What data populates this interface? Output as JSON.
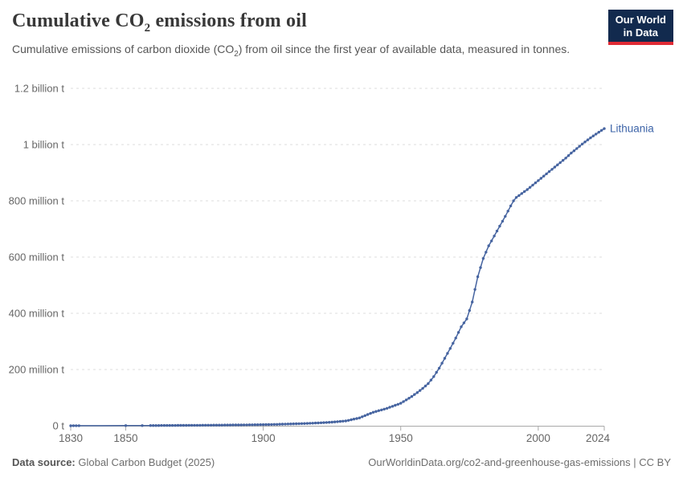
{
  "header": {
    "title_pre": "Cumulative CO",
    "title_sub": "2",
    "title_post": " emissions from oil",
    "subtitle_pre": "Cumulative emissions of carbon dioxide (CO",
    "subtitle_sub": "2",
    "subtitle_post": ") from oil since the first year of available data, measured in tonnes."
  },
  "logo": {
    "line1": "Our World",
    "line2": "in Data",
    "bg_color": "#122a4e",
    "accent_color": "#e02b35"
  },
  "chart_data": {
    "type": "line",
    "title": "Cumulative CO₂ emissions from oil",
    "entity_label": "Lithuania",
    "unit": "t",
    "points_unit": "million tonnes",
    "line_color": "#4664a0",
    "entity_label_color": "#3d64a8",
    "grid_color": "#dddddd",
    "axis_color": "#a8a8a8",
    "tick_label_color": "#666666",
    "grid": true,
    "legend_position": "end-of-line",
    "x_axis": {
      "range": [
        1830,
        2024
      ],
      "ticks": [
        1830,
        1850,
        1900,
        1950,
        2000,
        2024
      ]
    },
    "y_axis": {
      "range": [
        0,
        1200
      ],
      "ticks": [
        {
          "value": 0,
          "label": "0 t"
        },
        {
          "value": 200,
          "label": "200 million t"
        },
        {
          "value": 400,
          "label": "400 million t"
        },
        {
          "value": 600,
          "label": "600 million t"
        },
        {
          "value": 800,
          "label": "800 million t"
        },
        {
          "value": 1000,
          "label": "1 billion t"
        },
        {
          "value": 1200,
          "label": "1.2 billion t"
        }
      ]
    },
    "marker_years": {
      "isolated": [
        1830,
        1831,
        1832,
        1833,
        1850,
        1856
      ],
      "continuous_from": 1859,
      "continuous_to": 2024
    },
    "points": [
      [
        1830,
        0.1
      ],
      [
        1831,
        0.15
      ],
      [
        1832,
        0.2
      ],
      [
        1833,
        0.3
      ],
      [
        1850,
        0.5
      ],
      [
        1856,
        0.7
      ],
      [
        1859,
        0.8
      ],
      [
        1860,
        0.9
      ],
      [
        1865,
        1.1
      ],
      [
        1870,
        1.4
      ],
      [
        1875,
        1.7
      ],
      [
        1880,
        2.0
      ],
      [
        1885,
        2.4
      ],
      [
        1890,
        2.8
      ],
      [
        1895,
        3.3
      ],
      [
        1900,
        4.0
      ],
      [
        1905,
        5.0
      ],
      [
        1910,
        6.5
      ],
      [
        1915,
        8.0
      ],
      [
        1920,
        10
      ],
      [
        1925,
        13
      ],
      [
        1930,
        17
      ],
      [
        1935,
        28
      ],
      [
        1940,
        48
      ],
      [
        1945,
        62
      ],
      [
        1950,
        80
      ],
      [
        1952,
        92
      ],
      [
        1954,
        104
      ],
      [
        1956,
        118
      ],
      [
        1958,
        133
      ],
      [
        1960,
        150
      ],
      [
        1962,
        175
      ],
      [
        1964,
        205
      ],
      [
        1966,
        240
      ],
      [
        1968,
        275
      ],
      [
        1970,
        312
      ],
      [
        1972,
        352
      ],
      [
        1974,
        380
      ],
      [
        1976,
        440
      ],
      [
        1978,
        530
      ],
      [
        1980,
        595
      ],
      [
        1982,
        640
      ],
      [
        1984,
        675
      ],
      [
        1986,
        710
      ],
      [
        1988,
        745
      ],
      [
        1990,
        782
      ],
      [
        1991,
        800
      ],
      [
        1992,
        812
      ],
      [
        1994,
        826
      ],
      [
        1996,
        840
      ],
      [
        1998,
        856
      ],
      [
        2000,
        872
      ],
      [
        2002,
        888
      ],
      [
        2004,
        904
      ],
      [
        2006,
        920
      ],
      [
        2008,
        936
      ],
      [
        2010,
        952
      ],
      [
        2012,
        970
      ],
      [
        2014,
        986
      ],
      [
        2016,
        1002
      ],
      [
        2018,
        1017
      ],
      [
        2020,
        1031
      ],
      [
        2022,
        1044
      ],
      [
        2024,
        1057
      ]
    ]
  },
  "footer": {
    "source_label": "Data source:",
    "source_value": " Global Carbon Budget (2025)",
    "link_text": "OurWorldinData.org/co2-and-greenhouse-gas-emissions | CC BY"
  }
}
